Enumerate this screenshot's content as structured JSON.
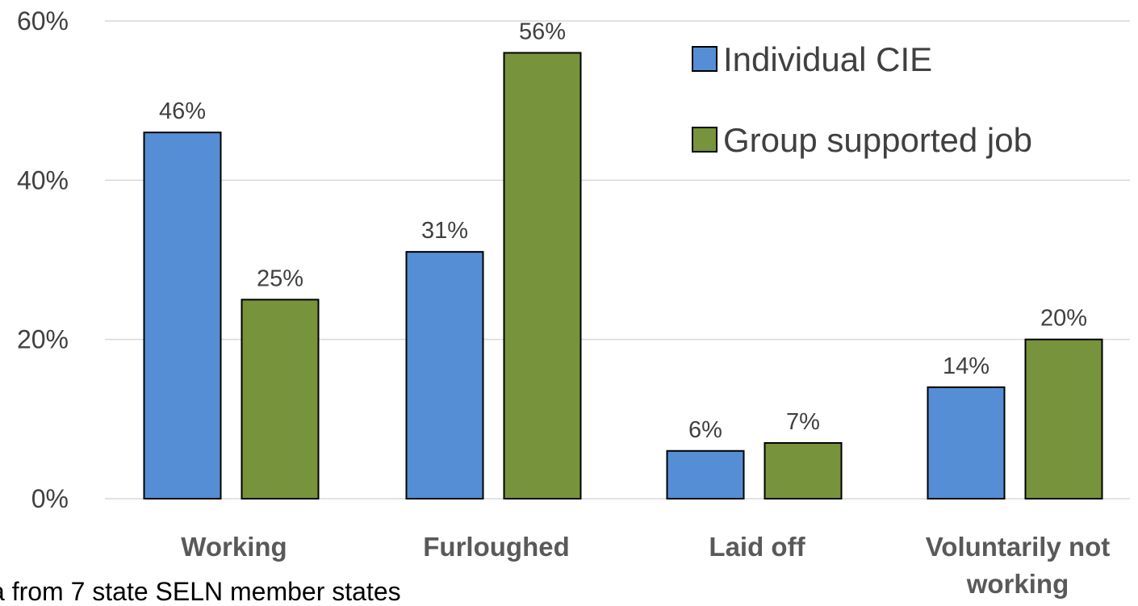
{
  "chart_data": {
    "type": "bar",
    "title": "",
    "xlabel": "",
    "ylabel": "",
    "ylim": [
      0,
      60
    ],
    "y_ticks": [
      0,
      20,
      40,
      60
    ],
    "y_tick_format": "percent",
    "grid": true,
    "legend_position": "top-right",
    "categories": [
      [
        "Working"
      ],
      [
        "Furloughed"
      ],
      [
        "Laid off"
      ],
      [
        "Voluntarily not",
        "working"
      ]
    ],
    "series": [
      {
        "name": "Individual CIE",
        "values": [
          46,
          31,
          6,
          14
        ],
        "color": "#558ED5"
      },
      {
        "name": "Group supported job",
        "values": [
          25,
          56,
          7,
          20
        ],
        "color": "#77933C"
      }
    ],
    "annotation": "a from 7 state SELN member states"
  }
}
